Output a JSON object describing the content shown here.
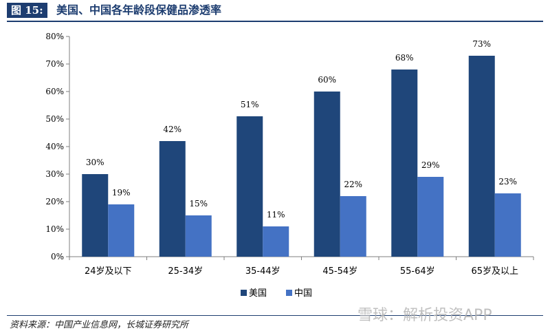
{
  "header": {
    "figure_label": "图 15:",
    "title": "美国、中国各年龄段保健品渗透率"
  },
  "chart_data": {
    "type": "bar",
    "categories": [
      "24岁及以下",
      "25-34岁",
      "35-44岁",
      "45-54岁",
      "55-64岁",
      "65岁及以上"
    ],
    "series": [
      {
        "name": "美国",
        "values": [
          30,
          42,
          51,
          60,
          68,
          73
        ],
        "labels": [
          "30%",
          "42%",
          "51%",
          "60%",
          "68%",
          "73%"
        ],
        "color": "#1f467a"
      },
      {
        "name": "中国",
        "values": [
          19,
          15,
          11,
          22,
          29,
          23
        ],
        "labels": [
          "19%",
          "15%",
          "11%",
          "22%",
          "29%",
          "23%"
        ],
        "color": "#4472c4"
      }
    ],
    "ylim": [
      0,
      80
    ],
    "y_ticks": [
      0,
      10,
      20,
      30,
      40,
      50,
      60,
      70,
      80
    ],
    "y_tick_labels": [
      "0%",
      "10%",
      "20%",
      "30%",
      "40%",
      "50%",
      "60%",
      "70%",
      "80%"
    ],
    "grid": false,
    "legend_position": "bottom-center"
  },
  "footer": {
    "source": "资料来源：中国产业信息网，长城证券研究所"
  },
  "watermark": "雪球：解析投资APP"
}
